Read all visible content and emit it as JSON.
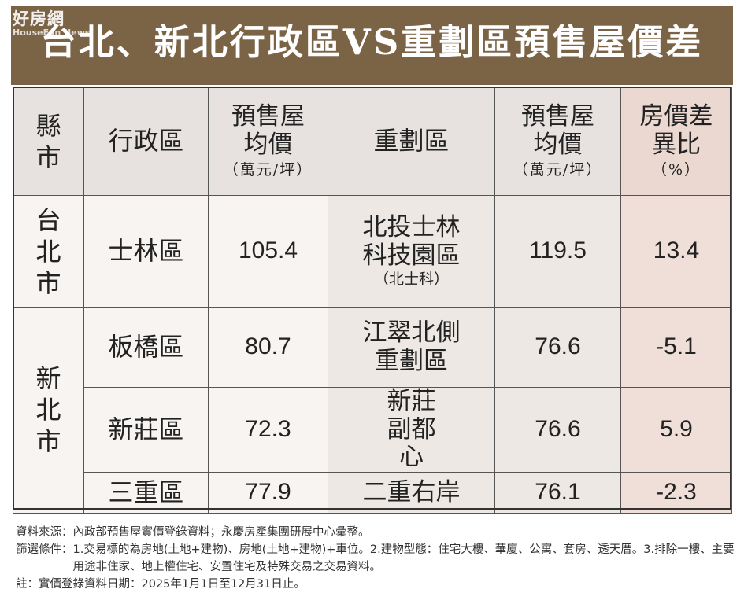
{
  "logo": {
    "brand": "好房網",
    "sub": "HouseFun News"
  },
  "title": "台北、新北行政區VS重劃區預售屋價差",
  "headers": {
    "city": "縣市",
    "district": "行政區",
    "district_price": "預售屋均價",
    "district_price_unit": "（萬元/坪）",
    "zone": "重劃區",
    "zone_price": "預售屋均價",
    "zone_price_unit": "（萬元/坪）",
    "diff": "房價差異比",
    "diff_unit": "（%）"
  },
  "cities": [
    "台北市",
    "新北市"
  ],
  "rows": [
    {
      "district": "士林區",
      "district_price": "105.4",
      "zone": "北投士林科技園區",
      "zone_note": "（北士科）",
      "zone_price": "119.5",
      "diff": "13.4"
    },
    {
      "district": "板橋區",
      "district_price": "80.7",
      "zone": "江翠北側重劃區",
      "zone_note": "",
      "zone_price": "76.6",
      "diff": "-5.1"
    },
    {
      "district": "新莊區",
      "district_price": "72.3",
      "zone": "新莊副都心",
      "zone_note": "",
      "zone_price": "76.6",
      "diff": "5.9"
    },
    {
      "district": "三重區",
      "district_price": "77.9",
      "zone": "二重右岸",
      "zone_note": "",
      "zone_price": "76.1",
      "diff": "-2.3"
    }
  ],
  "notes": {
    "source_label": "資料來源：",
    "source": "內政部預售屋實價登錄資料；永慶房產集團研展中心彙整。",
    "filter_label": "篩選條件：",
    "filter": "1.交易標的為房地(土地+建物)、房地(土地+建物)+車位。2.建物型態：住宅大樓、華廈、公寓、套房、透天厝。3.排除一樓、主要用途非住家、地上權住宅、安置住宅及特殊交易之交易資料。",
    "note_label": "註：",
    "note": "實價登錄資料日期：2025年1月1日至12月31日止。"
  }
}
